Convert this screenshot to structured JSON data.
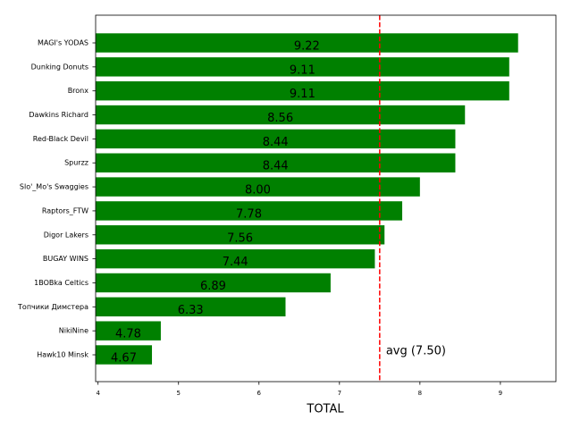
{
  "chart_data": {
    "type": "barh",
    "categories": [
      "MAGI's YODAS",
      "Dunking Donuts",
      "Bronx",
      "Dawkins Richard",
      "Red-Black Devil",
      "Spurzz",
      "Slo'_Mo's Swaggies",
      "Raptors_FTW",
      "Digor Lakers",
      "BUGAY WINS",
      "1BOBka Celtics",
      "Топчики Димстера",
      "NikiNine",
      "Hawk10 Minsk"
    ],
    "values": [
      9.22,
      9.11,
      9.11,
      8.56,
      8.44,
      8.44,
      8.0,
      7.78,
      7.56,
      7.44,
      6.89,
      6.33,
      4.78,
      4.67
    ],
    "value_labels": [
      "9.22",
      "9.11",
      "9.11",
      "8.56",
      "8.44",
      "8.44",
      "8.00",
      "7.78",
      "7.56",
      "7.44",
      "6.89",
      "6.33",
      "4.78",
      "4.67"
    ],
    "color": "#008000",
    "xlabel": "TOTAL",
    "xlim": [
      3.97,
      9.69
    ],
    "xticks": [
      4,
      5,
      6,
      7,
      8,
      9
    ],
    "reference_line": {
      "value": 7.5,
      "label": "avg (7.50)",
      "color": "#ff0000"
    }
  }
}
